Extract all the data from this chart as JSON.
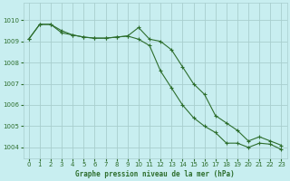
{
  "title": "Graphe pression niveau de la mer (hPa)",
  "background_color": "#c8eef0",
  "grid_color": "#a8cece",
  "line_color": "#2d6e2d",
  "xlim": [
    -0.5,
    23.5
  ],
  "ylim": [
    1003.5,
    1010.8
  ],
  "yticks": [
    1004,
    1005,
    1006,
    1007,
    1008,
    1009,
    1010
  ],
  "xticks": [
    0,
    1,
    2,
    3,
    4,
    5,
    6,
    7,
    8,
    9,
    10,
    11,
    12,
    13,
    14,
    15,
    16,
    17,
    18,
    19,
    20,
    21,
    22,
    23
  ],
  "series1_x": [
    0,
    1,
    2,
    3,
    4,
    5,
    6,
    7,
    8,
    9,
    10,
    11,
    12,
    13,
    14,
    15,
    16,
    17,
    18,
    19,
    20,
    21,
    22,
    23
  ],
  "series1_y": [
    1009.1,
    1009.8,
    1009.8,
    1009.4,
    1009.3,
    1009.2,
    1009.15,
    1009.15,
    1009.2,
    1009.25,
    1009.65,
    1009.1,
    1009.0,
    1008.6,
    1007.8,
    1007.0,
    1006.5,
    1005.5,
    1005.15,
    1004.8,
    1004.3,
    1004.5,
    1004.3,
    1004.1
  ],
  "series2_x": [
    0,
    1,
    2,
    3,
    4,
    5,
    6,
    7,
    8,
    9,
    10,
    11,
    12,
    13,
    14,
    15,
    16,
    17,
    18,
    19,
    20,
    21,
    22,
    23
  ],
  "series2_y": [
    1009.1,
    1009.8,
    1009.8,
    1009.5,
    1009.3,
    1009.2,
    1009.15,
    1009.15,
    1009.2,
    1009.25,
    1009.1,
    1008.8,
    1007.6,
    1006.8,
    1006.0,
    1005.4,
    1005.0,
    1004.7,
    1004.2,
    1004.2,
    1004.0,
    1004.2,
    1004.15,
    1003.9
  ]
}
